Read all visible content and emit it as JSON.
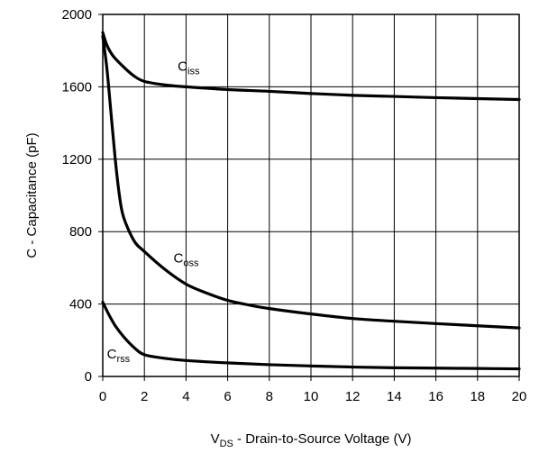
{
  "chart_data": {
    "type": "line",
    "xlabel": {
      "main": "V",
      "sub": "DS",
      "rest": " - Drain-to-Source Voltage (V)"
    },
    "ylabel": "C - Capacitance (pF)",
    "xlim": [
      0,
      20
    ],
    "ylim": [
      0,
      2000
    ],
    "x_ticks": [
      "0",
      "2",
      "4",
      "6",
      "8",
      "10",
      "12",
      "14",
      "16",
      "18",
      "20"
    ],
    "y_ticks": [
      "0",
      "400",
      "800",
      "1200",
      "1600",
      "2000"
    ],
    "grid": true,
    "series": [
      {
        "name": "Ciss",
        "label": {
          "main": "C",
          "sub": "iss",
          "x": 3.6,
          "y": 1690
        },
        "points": [
          [
            0,
            1900
          ],
          [
            0.2,
            1830
          ],
          [
            0.5,
            1770
          ],
          [
            1,
            1710
          ],
          [
            1.5,
            1660
          ],
          [
            2,
            1630
          ],
          [
            3,
            1610
          ],
          [
            4,
            1600
          ],
          [
            6,
            1585
          ],
          [
            8,
            1575
          ],
          [
            10,
            1563
          ],
          [
            12,
            1553
          ],
          [
            14,
            1547
          ],
          [
            16,
            1540
          ],
          [
            18,
            1535
          ],
          [
            20,
            1530
          ]
        ]
      },
      {
        "name": "Coss",
        "label": {
          "main": "C",
          "sub": "oss",
          "x": 3.4,
          "y": 630
        },
        "points": [
          [
            0,
            1880
          ],
          [
            0.2,
            1700
          ],
          [
            0.4,
            1450
          ],
          [
            0.6,
            1200
          ],
          [
            0.8,
            1000
          ],
          [
            1,
            880
          ],
          [
            1.5,
            750
          ],
          [
            2,
            690
          ],
          [
            3,
            590
          ],
          [
            4,
            510
          ],
          [
            5,
            460
          ],
          [
            6,
            420
          ],
          [
            7,
            395
          ],
          [
            8,
            375
          ],
          [
            10,
            345
          ],
          [
            12,
            320
          ],
          [
            14,
            305
          ],
          [
            16,
            292
          ],
          [
            18,
            280
          ],
          [
            20,
            268
          ]
        ]
      },
      {
        "name": "Crss",
        "label": {
          "main": "C",
          "sub": "rss",
          "x": 0.2,
          "y": 100
        },
        "points": [
          [
            0,
            410
          ],
          [
            0.3,
            340
          ],
          [
            0.6,
            280
          ],
          [
            1,
            220
          ],
          [
            1.5,
            160
          ],
          [
            2,
            120
          ],
          [
            3,
            100
          ],
          [
            4,
            88
          ],
          [
            6,
            75
          ],
          [
            8,
            65
          ],
          [
            10,
            58
          ],
          [
            12,
            52
          ],
          [
            14,
            48
          ],
          [
            16,
            46
          ],
          [
            18,
            44
          ],
          [
            20,
            42
          ]
        ]
      }
    ]
  }
}
